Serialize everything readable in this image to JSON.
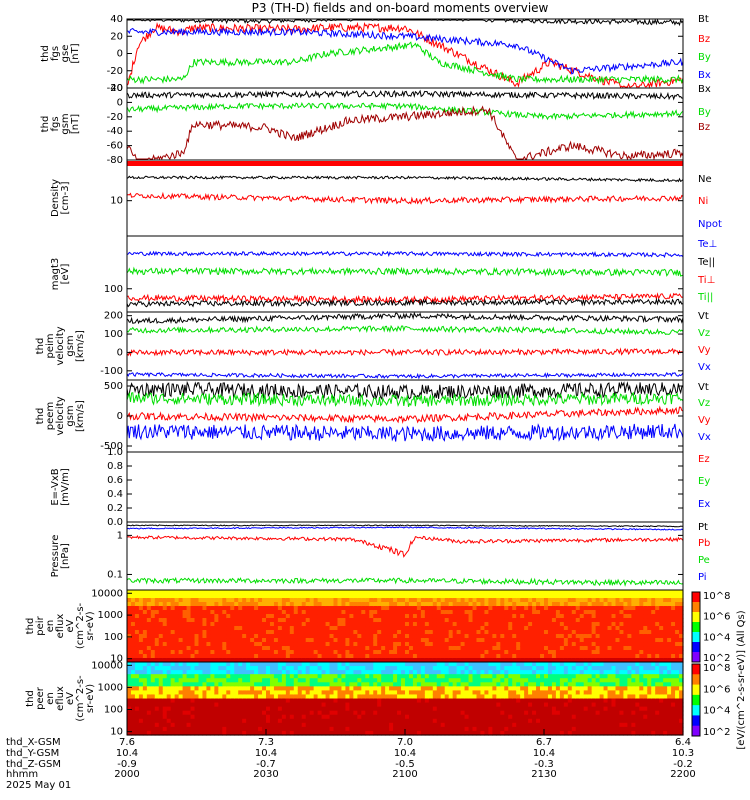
{
  "title": "P3 (TH-D) fields and on-board moments overview",
  "time_axis": {
    "ticks": [
      "2000",
      "2030",
      "2100",
      "2130",
      "2200"
    ],
    "rows": [
      {
        "label": "thd_X-GSM",
        "values": [
          "7.6",
          "7.3",
          "7.0",
          "6.7",
          "6.4"
        ]
      },
      {
        "label": "thd_Y-GSM",
        "values": [
          "10.4",
          "10.4",
          "10.4",
          "10.4",
          "10.3"
        ]
      },
      {
        "label": "thd_Z-GSM",
        "values": [
          "-0.9",
          "-0.7",
          "-0.5",
          "-0.3",
          "-0.2"
        ]
      },
      {
        "label": "hhmm",
        "values": [
          "2000",
          "2030",
          "2100",
          "2130",
          "2200"
        ]
      }
    ],
    "date": "2025 May 01"
  },
  "colorbar": {
    "label": "[eV/(cm^2-s-sr-eV)] (All Qs)",
    "top_ticks": [
      "10^8",
      "10^6",
      "10^4",
      "10^2"
    ],
    "bottom_ticks": [
      "10^8",
      "10^6",
      "10^4",
      "10^2"
    ],
    "colors": [
      "#ff0000",
      "#ff8000",
      "#ffff00",
      "#00ff00",
      "#00ffff",
      "#0000ff",
      "#8000ff"
    ]
  },
  "colors": {
    "black": "#000000",
    "red": "#ff0000",
    "green": "#00dd00",
    "blue": "#0000ff",
    "darkred": "#a00000"
  },
  "chart_data": [
    {
      "type": "line",
      "id": "fgs_gse",
      "ylabel": [
        "thd",
        "fgs",
        "gse",
        "[nT]"
      ],
      "ylim": [
        -40,
        40
      ],
      "yticks": [
        -40,
        -20,
        0,
        20,
        40
      ],
      "legend": [
        "Bt",
        "Bz",
        "By",
        "Bx"
      ],
      "series": [
        {
          "name": "Bt",
          "color": "#000000",
          "x": [
            0,
            0.25,
            0.5,
            0.75,
            1
          ],
          "values": [
            40,
            38,
            42,
            38,
            36
          ],
          "noise": 3
        },
        {
          "name": "Bz",
          "color": "#ff0000",
          "x": [
            0,
            0.02,
            0.05,
            0.1,
            0.12,
            0.3,
            0.36,
            0.5,
            0.7,
            0.76,
            0.85,
            0.9,
            1
          ],
          "values": [
            -40,
            10,
            30,
            25,
            30,
            28,
            30,
            30,
            -35,
            -10,
            -30,
            -40,
            -30
          ],
          "noise": 5
        },
        {
          "name": "By",
          "color": "#00dd00",
          "x": [
            0,
            0.1,
            0.12,
            0.3,
            0.36,
            0.52,
            0.56,
            0.7,
            1
          ],
          "values": [
            -30,
            -30,
            -10,
            -10,
            0,
            10,
            -10,
            -30,
            -30
          ],
          "noise": 4
        },
        {
          "name": "Bx",
          "color": "#0000ff",
          "x": [
            0,
            0.3,
            0.5,
            0.7,
            0.8,
            1
          ],
          "values": [
            25,
            25,
            20,
            10,
            -20,
            -10
          ],
          "noise": 4
        }
      ]
    },
    {
      "type": "line",
      "id": "fgs_gsm",
      "ylabel": [
        "thd",
        "fgs",
        "gsm",
        "[nT]"
      ],
      "ylim": [
        -80,
        20
      ],
      "yticks": [
        -80,
        -60,
        -40,
        -20,
        0,
        20
      ],
      "legend": [
        "Bx",
        "By",
        "Bz"
      ],
      "series": [
        {
          "name": "Bx",
          "color": "#000000",
          "x": [
            0,
            0.5,
            1
          ],
          "values": [
            10,
            12,
            8
          ],
          "noise": 4
        },
        {
          "name": "By",
          "color": "#00dd00",
          "x": [
            0,
            0.2,
            0.5,
            0.75,
            1
          ],
          "values": [
            -10,
            -5,
            -5,
            -20,
            -15
          ],
          "noise": 4
        },
        {
          "name": "Bz",
          "color": "#a00000",
          "x": [
            0,
            0.02,
            0.1,
            0.12,
            0.25,
            0.3,
            0.4,
            0.5,
            0.65,
            0.7,
            0.8,
            0.9,
            1
          ],
          "values": [
            -60,
            -85,
            -70,
            -30,
            -35,
            -50,
            -25,
            -20,
            -10,
            -80,
            -60,
            -75,
            -70
          ],
          "noise": 6
        }
      ]
    },
    {
      "type": "line",
      "id": "density",
      "ylabel": [
        "Density",
        "[cm-3]"
      ],
      "yticks": [
        10
      ],
      "legend": [
        "Ne",
        "Ni",
        "Npot"
      ],
      "series": [
        {
          "name": "Ne",
          "color": "#000000",
          "x": [
            0,
            0.5,
            1
          ],
          "values": [
            22,
            22,
            20
          ],
          "noise": 1
        },
        {
          "name": "Ni",
          "color": "#ff0000",
          "x": [
            0,
            0.5,
            1
          ],
          "values": [
            12,
            10,
            11
          ],
          "noise": 1
        }
      ]
    },
    {
      "type": "line",
      "id": "temperature",
      "ylabel": [
        "magt3",
        "[eV]"
      ],
      "yticks": [
        100
      ],
      "legend": [
        "Te⊥",
        "Te||",
        "Ti⊥",
        "Ti||"
      ],
      "series": [
        {
          "name": "Te⊥",
          "color": "#0000ff",
          "x": [
            0,
            0.5,
            1
          ],
          "values": [
            400,
            400,
            380
          ],
          "noise": 30
        },
        {
          "name": "Ti||",
          "color": "#00dd00",
          "x": [
            0,
            0.5,
            1
          ],
          "values": [
            200,
            200,
            190
          ],
          "noise": 25
        },
        {
          "name": "Ti⊥",
          "color": "#ff0000",
          "x": [
            0,
            0.5,
            1
          ],
          "values": [
            70,
            65,
            75
          ],
          "noise": 8
        },
        {
          "name": "Te||",
          "color": "#000000",
          "x": [
            0,
            0.5,
            1
          ],
          "values": [
            55,
            58,
            60
          ],
          "noise": 6
        }
      ]
    },
    {
      "type": "line",
      "id": "ion_velocity",
      "ylabel": [
        "thd",
        "peim",
        "velocity",
        "gsm",
        "[km/s]"
      ],
      "ylim": [
        -150,
        220
      ],
      "yticks": [
        -100,
        0,
        100,
        200
      ],
      "legend": [
        "Vt",
        "Vz",
        "Vy",
        "Vx"
      ],
      "series": [
        {
          "name": "Vt",
          "color": "#000000",
          "x": [
            0,
            0.5,
            1
          ],
          "values": [
            170,
            200,
            180
          ],
          "noise": 15
        },
        {
          "name": "Vz",
          "color": "#00dd00",
          "x": [
            0,
            0.5,
            1
          ],
          "values": [
            120,
            130,
            110
          ],
          "noise": 15
        },
        {
          "name": "Vy",
          "color": "#ff0000",
          "x": [
            0,
            0.5,
            1
          ],
          "values": [
            0,
            0,
            5
          ],
          "noise": 15
        },
        {
          "name": "Vx",
          "color": "#0000ff",
          "x": [
            0,
            0.5,
            1
          ],
          "values": [
            -120,
            -130,
            -120
          ],
          "noise": 10
        }
      ]
    },
    {
      "type": "line",
      "id": "electron_velocity",
      "ylabel": [
        "thd",
        "peem",
        "velocity",
        "gsm",
        "[km/s]"
      ],
      "ylim": [
        -600,
        600
      ],
      "yticks": [
        -500,
        0,
        500
      ],
      "legend": [
        "Vt",
        "Vz",
        "Vy",
        "Vx"
      ],
      "series": [
        {
          "name": "Vt",
          "color": "#000000",
          "x": [
            0,
            0.5,
            1
          ],
          "values": [
            450,
            400,
            450
          ],
          "noise": 120
        },
        {
          "name": "Vz",
          "color": "#00dd00",
          "x": [
            0,
            0.5,
            1
          ],
          "values": [
            300,
            250,
            300
          ],
          "noise": 100
        },
        {
          "name": "Vy",
          "color": "#ff0000",
          "x": [
            0,
            0.5,
            1
          ],
          "values": [
            0,
            -50,
            100
          ],
          "noise": 60
        },
        {
          "name": "Vx",
          "color": "#0000ff",
          "x": [
            0,
            0.5,
            1
          ],
          "values": [
            -250,
            -300,
            -250
          ],
          "noise": 130
        }
      ]
    },
    {
      "type": "line",
      "id": "efield",
      "ylabel": [
        "E=-VxB",
        "[mV/m]"
      ],
      "ylim": [
        0,
        1
      ],
      "yticks": [
        0.0,
        0.2,
        0.4,
        0.6,
        0.8,
        1.0
      ],
      "legend": [
        "Ez",
        "Ey",
        "Ex"
      ],
      "series": []
    },
    {
      "type": "line",
      "id": "pressure",
      "ylabel": [
        "Pressure",
        "[nPa]"
      ],
      "yticks": [
        0.1,
        1.0
      ],
      "legend": [
        "Pt",
        "Pb",
        "Pe",
        "Pi"
      ],
      "series": [
        {
          "name": "Pt",
          "color": "#000000",
          "x": [
            0,
            0.5,
            1
          ],
          "values": [
            1.8,
            1.8,
            1.7
          ],
          "noise": 0.05
        },
        {
          "name": "Pi",
          "color": "#0000ff",
          "x": [
            0,
            0.5,
            1
          ],
          "values": [
            1.5,
            1.6,
            1.4
          ],
          "noise": 0.05
        },
        {
          "name": "Pb",
          "color": "#ff0000",
          "x": [
            0,
            0.4,
            0.5,
            0.52,
            0.6,
            1
          ],
          "values": [
            0.9,
            0.8,
            0.3,
            0.9,
            0.7,
            0.8
          ],
          "noise": 0.08
        },
        {
          "name": "Pe",
          "color": "#00dd00",
          "x": [
            0,
            0.5,
            1
          ],
          "values": [
            0.07,
            0.07,
            0.06
          ],
          "noise": 0.01
        }
      ]
    },
    {
      "type": "heatmap",
      "id": "ion_spectrogram",
      "ylabel": [
        "thd",
        "peir",
        "en",
        "eflux",
        "eV",
        "(cm^2-s-",
        "sr-eV)"
      ],
      "yticks": [
        10,
        100,
        1000,
        10000
      ]
    },
    {
      "type": "heatmap",
      "id": "electron_spectrogram",
      "ylabel": [
        "thd",
        "peer",
        "en",
        "eflux",
        "eV",
        "(cm^2-s-",
        "sr-eV)"
      ],
      "yticks": [
        10,
        100,
        1000,
        10000
      ]
    }
  ]
}
